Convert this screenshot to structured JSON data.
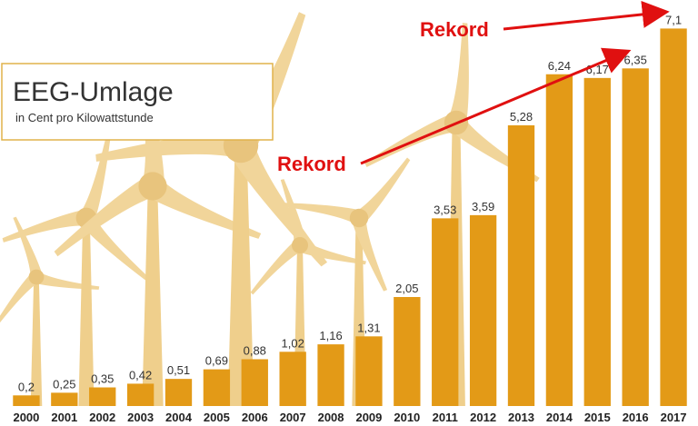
{
  "chart_data": {
    "type": "bar",
    "title": "EEG-Umlage",
    "subtitle": "in Cent pro Kilowattstunde",
    "categories": [
      "2000",
      "2001",
      "2002",
      "2003",
      "2004",
      "2005",
      "2006",
      "2007",
      "2008",
      "2009",
      "2010",
      "2011",
      "2012",
      "2013",
      "2014",
      "2015",
      "2016",
      "2017"
    ],
    "values": [
      0.2,
      0.25,
      0.35,
      0.42,
      0.51,
      0.69,
      0.88,
      1.02,
      1.16,
      1.31,
      2.05,
      3.53,
      3.59,
      5.28,
      6.24,
      6.17,
      6.35,
      7.1
    ],
    "value_labels": [
      "0,2",
      "0,25",
      "0,35",
      "0,42",
      "0,51",
      "0,69",
      "0,88",
      "1,02",
      "1,16",
      "1,31",
      "2,05",
      "3,53",
      "3,59",
      "5,28",
      "6,24",
      "6,17",
      "6,35",
      "7,1"
    ],
    "ylim": [
      0,
      7.5
    ],
    "grid": false,
    "legend": "none",
    "bar_color": "#e39a17",
    "annotations": [
      {
        "text": "Rekord",
        "from_index": 14,
        "to_index": 16
      },
      {
        "text": "Rekord",
        "from_index": 16,
        "to_index": 17
      }
    ],
    "annotation_color": "#e01010",
    "background_decoration": "wind-turbines"
  }
}
